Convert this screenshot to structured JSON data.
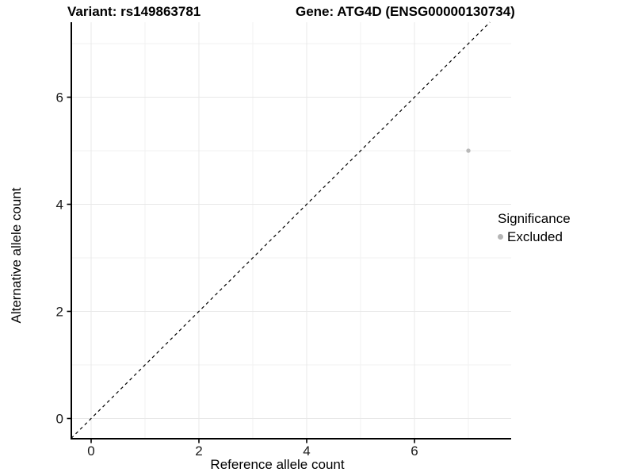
{
  "figure": {
    "title_left": "Variant: rs149863781",
    "title_right": "Gene: ATG4D (ENSG00000130734)"
  },
  "chart_data": {
    "type": "scatter",
    "title_left": "Variant: rs149863781",
    "title_right": "Gene: ATG4D (ENSG00000130734)",
    "xlabel": "Reference allele count",
    "ylabel": "Alternative allele count",
    "xlim": [
      -0.37,
      7.8
    ],
    "ylim": [
      -0.39,
      7.4
    ],
    "x_ticks": [
      0,
      2,
      4,
      6
    ],
    "y_ticks": [
      0,
      2,
      4,
      6
    ],
    "x_minor_gridlines": [
      1,
      3,
      5,
      7
    ],
    "y_minor_gridlines": [
      1,
      3,
      5,
      7
    ],
    "grid": true,
    "identity_line": {
      "slope": 1,
      "intercept": 0,
      "style": "dashed",
      "color": "#000000"
    },
    "series": [
      {
        "name": "Excluded",
        "color": "#b9b9b9",
        "points": [
          {
            "x": 7,
            "y": 5
          }
        ]
      }
    ],
    "legend": {
      "position": "right",
      "title": "Significance",
      "entries": [
        {
          "label": "Excluded",
          "color": "#b5b5b5"
        }
      ]
    },
    "colors": {
      "background": "#ffffff",
      "panel_background": "#ffffff",
      "major_gridline": "#e8e8e8",
      "minor_gridline": "#f2f2f2",
      "axis_line": "#000000",
      "tick_label": "#1a1a1a"
    }
  }
}
